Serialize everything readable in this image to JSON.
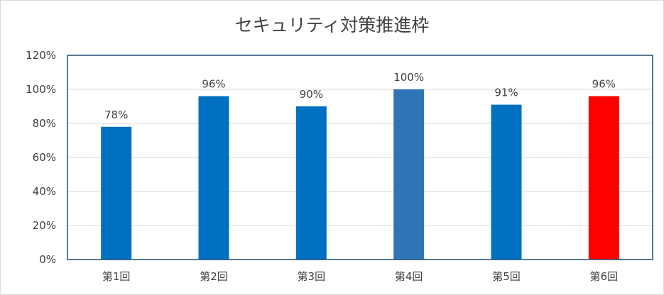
{
  "chart_data": {
    "type": "bar",
    "title": "セキュリティ対策推進枠",
    "categories": [
      "第1回",
      "第2回",
      "第3回",
      "第4回",
      "第5回",
      "第6回"
    ],
    "values": [
      78,
      96,
      90,
      100,
      91,
      96
    ],
    "data_labels": [
      "78%",
      "96%",
      "90%",
      "100%",
      "91%",
      "96%"
    ],
    "bar_colors": [
      "#0070c0",
      "#0070c0",
      "#0070c0",
      "#2e75b6",
      "#0070c0",
      "#ff0000"
    ],
    "ylim": [
      0,
      120
    ],
    "yticks": [
      0,
      20,
      40,
      60,
      80,
      100,
      120
    ],
    "ytick_labels": [
      "0%",
      "20%",
      "40%",
      "60%",
      "80%",
      "100%",
      "120%"
    ],
    "xlabel": "",
    "ylabel": "",
    "grid": true,
    "legend": false,
    "colors": {
      "grid": "#d9d9d9",
      "plot_border": "#1f4e79",
      "text": "#404040"
    }
  }
}
